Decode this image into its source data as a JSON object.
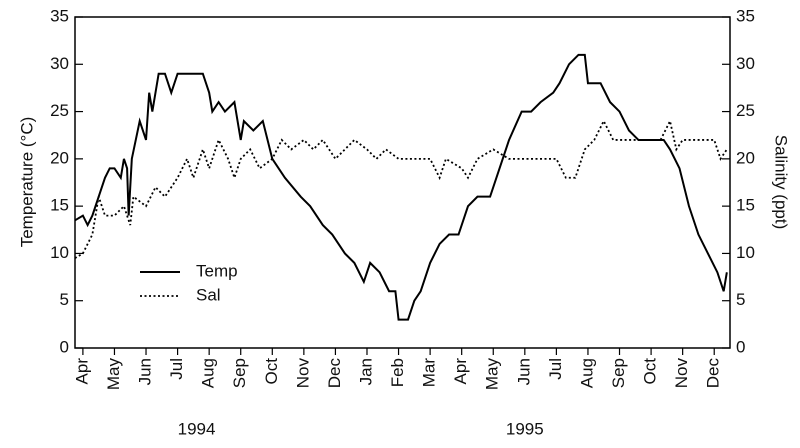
{
  "chart_data": {
    "type": "line",
    "y_label": "Temperature (°C)",
    "y2_label": "Salinity (ppt)",
    "xlim": [
      -0.25,
      20.5
    ],
    "xticks": [
      {
        "value": 0,
        "label": "Apr"
      },
      {
        "value": 1,
        "label": "May"
      },
      {
        "value": 2,
        "label": "Jun"
      },
      {
        "value": 3,
        "label": "Jul"
      },
      {
        "value": 4,
        "label": "Aug"
      },
      {
        "value": 5,
        "label": "Sep"
      },
      {
        "value": 6,
        "label": "Oct"
      },
      {
        "value": 7,
        "label": "Nov"
      },
      {
        "value": 8,
        "label": "Dec"
      },
      {
        "value": 9,
        "label": "Jan"
      },
      {
        "value": 10,
        "label": "Feb"
      },
      {
        "value": 11,
        "label": "Mar"
      },
      {
        "value": 12,
        "label": "Apr"
      },
      {
        "value": 13,
        "label": "May"
      },
      {
        "value": 14,
        "label": "Jun"
      },
      {
        "value": 15,
        "label": "Jul"
      },
      {
        "value": 16,
        "label": "Aug"
      },
      {
        "value": 17,
        "label": "Sep"
      },
      {
        "value": 18,
        "label": "Oct"
      },
      {
        "value": 19,
        "label": "Nov"
      },
      {
        "value": 20,
        "label": "Dec"
      }
    ],
    "x_group_labels": [
      {
        "value": 3.6,
        "label": "1994"
      },
      {
        "value": 14,
        "label": "1995"
      }
    ],
    "ylim": [
      0,
      35
    ],
    "yticks": [
      0,
      5,
      10,
      15,
      20,
      25,
      30,
      35
    ],
    "y2lim": [
      0,
      35
    ],
    "y2ticks": [
      0,
      5,
      10,
      15,
      20,
      25,
      30,
      35
    ],
    "legend": "lower-left",
    "series": [
      {
        "name": "Temp",
        "color": "#000000",
        "style": "solid",
        "x": [
          -0.25,
          0,
          0.15,
          0.3,
          0.5,
          0.7,
          0.85,
          1,
          1.2,
          1.3,
          1.4,
          1.45,
          1.55,
          1.8,
          2,
          2.1,
          2.2,
          2.4,
          2.6,
          2.8,
          3,
          3.4,
          3.8,
          4,
          4.1,
          4.3,
          4.5,
          4.8,
          5,
          5.1,
          5.4,
          5.7,
          6,
          6.4,
          6.9,
          7.2,
          7.6,
          7.9,
          8.3,
          8.6,
          8.9,
          9.1,
          9.4,
          9.7,
          9.9,
          10,
          10.3,
          10.5,
          10.7,
          11,
          11.3,
          11.6,
          11.9,
          12.2,
          12.5,
          12.9,
          13.2,
          13.5,
          13.9,
          14.2,
          14.5,
          14.9,
          15.1,
          15.4,
          15.7,
          15.9,
          16,
          16.4,
          16.7,
          17,
          17.3,
          17.6,
          18,
          18.4,
          18.6,
          18.9,
          19.2,
          19.5,
          19.8,
          20.1,
          20.3,
          20.4
        ],
        "values": [
          13.5,
          14,
          13,
          14,
          16,
          18,
          19,
          19,
          18,
          20,
          19,
          14,
          20,
          24,
          22,
          27,
          25,
          29,
          29,
          27,
          29,
          29,
          29,
          27,
          25,
          26,
          25,
          26,
          22,
          24,
          23,
          24,
          20,
          18,
          16,
          15,
          13,
          12,
          10,
          9,
          7,
          9,
          8,
          6,
          6,
          3,
          3,
          5,
          6,
          9,
          11,
          12,
          12,
          15,
          16,
          16,
          19,
          22,
          25,
          25,
          26,
          27,
          28,
          30,
          31,
          31,
          28,
          28,
          26,
          25,
          23,
          22,
          22,
          22,
          21,
          19,
          15,
          12,
          10,
          8,
          6,
          8
        ]
      },
      {
        "name": "Sal",
        "color": "#000000",
        "style": "dotted",
        "axis": "y2",
        "x": [
          -0.25,
          0,
          0.3,
          0.5,
          0.7,
          1,
          1.3,
          1.5,
          1.6,
          2,
          2.3,
          2.6,
          3,
          3.3,
          3.5,
          3.8,
          4,
          4.3,
          4.6,
          4.8,
          5,
          5.3,
          5.6,
          6,
          6.3,
          6.6,
          7,
          7.3,
          7.6,
          8,
          8.3,
          8.6,
          9,
          9.3,
          9.6,
          10,
          11,
          11.3,
          11.5,
          12,
          12.2,
          12.5,
          13,
          13.5,
          14,
          15,
          15.3,
          15.6,
          15.9,
          16.2,
          16.5,
          16.8,
          17.2,
          18,
          18.3,
          18.6,
          18.8,
          19,
          19.5,
          20,
          20.2,
          20.4
        ],
        "values": [
          9.5,
          10,
          12,
          16,
          14,
          14,
          15,
          13,
          16,
          15,
          17,
          16,
          18,
          20,
          18,
          21,
          19,
          22,
          20,
          18,
          20,
          21,
          19,
          20,
          22,
          21,
          22,
          21,
          22,
          20,
          21,
          22,
          21,
          20,
          21,
          20,
          20,
          18,
          20,
          19,
          18,
          20,
          21,
          20,
          20,
          20,
          18,
          18,
          21,
          22,
          24,
          22,
          22,
          22,
          22,
          24,
          21,
          22,
          22,
          22,
          20,
          21
        ]
      }
    ]
  }
}
